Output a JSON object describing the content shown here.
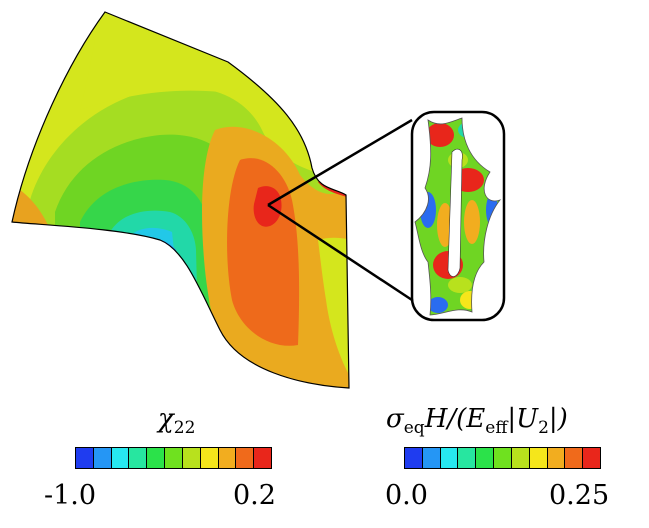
{
  "colormap": [
    "#1f3cf0",
    "#2596f5",
    "#27e8f0",
    "#27e6a0",
    "#2be24a",
    "#6fe11f",
    "#b8e11d",
    "#f5e61b",
    "#f2ad1f",
    "#f06a1b",
    "#e9261b"
  ],
  "colorbars": [
    {
      "title": "χ22",
      "title_main": "χ",
      "title_sub": "22",
      "min_label": "-1.0",
      "max_label": "0.2"
    },
    {
      "title": "σeqH/(Eeff|U2|)",
      "title_parts": [
        "σ",
        "eq",
        "H/(E",
        "eff",
        "|U",
        "2",
        "|)"
      ],
      "min_label": "0.0",
      "max_label": "0.25"
    }
  ],
  "inset": {
    "zoom_pointer": "zoom-lines"
  }
}
